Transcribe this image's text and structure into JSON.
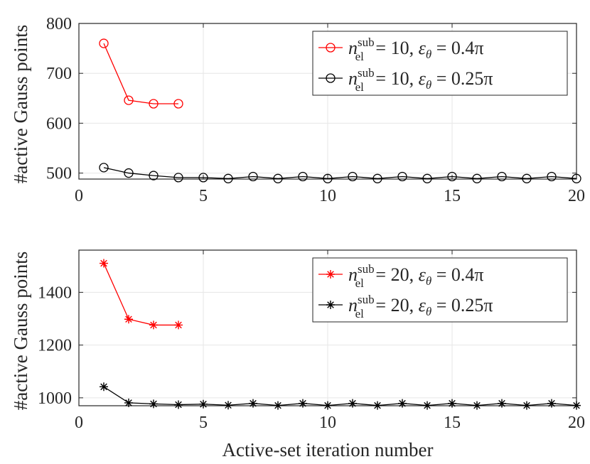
{
  "chart_data": [
    {
      "type": "line",
      "xlabel": "",
      "ylabel": "#active Gauss points",
      "xlim": [
        0,
        20
      ],
      "ylim": [
        488,
        800
      ],
      "xticks": [
        "0",
        "5",
        "10",
        "15",
        "20"
      ],
      "yticks": [
        "500",
        "600",
        "700",
        "800"
      ],
      "ytick_values": [
        500,
        600,
        700,
        800
      ],
      "grid": true,
      "legend_position": "top-right",
      "series": [
        {
          "name": "n_el^sub = 10, ε_θ = 0.4π",
          "legend_parts": {
            "n": "n",
            "sup": "sub",
            "sub": "el",
            "rest": " = 10, ",
            "eps": "ε",
            "eps_sub": "θ",
            "rest2": " = 0.4π"
          },
          "color": "#ff0000",
          "marker": "circle",
          "x": [
            1,
            2,
            3,
            4
          ],
          "values": [
            760,
            646,
            639,
            639
          ]
        },
        {
          "name": "n_el^sub = 10, ε_θ = 0.25π",
          "legend_parts": {
            "n": "n",
            "sup": "sub",
            "sub": "el",
            "rest": " = 10, ",
            "eps": "ε",
            "eps_sub": "θ",
            "rest2": " = 0.25π"
          },
          "color": "#000000",
          "marker": "circle",
          "x": [
            1,
            2,
            3,
            4,
            5,
            6,
            7,
            8,
            9,
            10,
            11,
            12,
            13,
            14,
            15,
            16,
            17,
            18,
            19,
            20
          ],
          "values": [
            511,
            500,
            495,
            491,
            491,
            489,
            493,
            489,
            493,
            489,
            493,
            489,
            493,
            489,
            493,
            489,
            493,
            489,
            493,
            489
          ]
        }
      ]
    },
    {
      "type": "line",
      "xlabel": "Active-set iteration number",
      "ylabel": "#active Gauss points",
      "xlim": [
        0,
        20
      ],
      "ylim": [
        970,
        1560
      ],
      "xticks": [
        "0",
        "5",
        "10",
        "15",
        "20"
      ],
      "yticks": [
        "1000",
        "1200",
        "1400"
      ],
      "ytick_values": [
        1000,
        1200,
        1400
      ],
      "grid": true,
      "legend_position": "top-right",
      "series": [
        {
          "name": "n_el^sub = 20, ε_θ = 0.4π",
          "legend_parts": {
            "n": "n",
            "sup": "sub",
            "sub": "el",
            "rest": " = 20, ",
            "eps": "ε",
            "eps_sub": "θ",
            "rest2": " = 0.4π"
          },
          "color": "#ff0000",
          "marker": "asterisk",
          "x": [
            1,
            2,
            3,
            4
          ],
          "values": [
            1510,
            1298,
            1276,
            1276
          ]
        },
        {
          "name": "n_el^sub = 20, ε_θ = 0.25π",
          "legend_parts": {
            "n": "n",
            "sup": "sub",
            "sub": "el",
            "rest": " = 20, ",
            "eps": "ε",
            "eps_sub": "θ",
            "rest2": " = 0.25π"
          },
          "color": "#000000",
          "marker": "asterisk",
          "x": [
            1,
            2,
            3,
            4,
            5,
            6,
            7,
            8,
            9,
            10,
            11,
            12,
            13,
            14,
            15,
            16,
            17,
            18,
            19,
            20
          ],
          "values": [
            1042,
            981,
            977,
            974,
            976,
            972,
            979,
            971,
            979,
            971,
            979,
            971,
            979,
            971,
            979,
            971,
            979,
            971,
            979,
            971
          ]
        }
      ]
    }
  ]
}
